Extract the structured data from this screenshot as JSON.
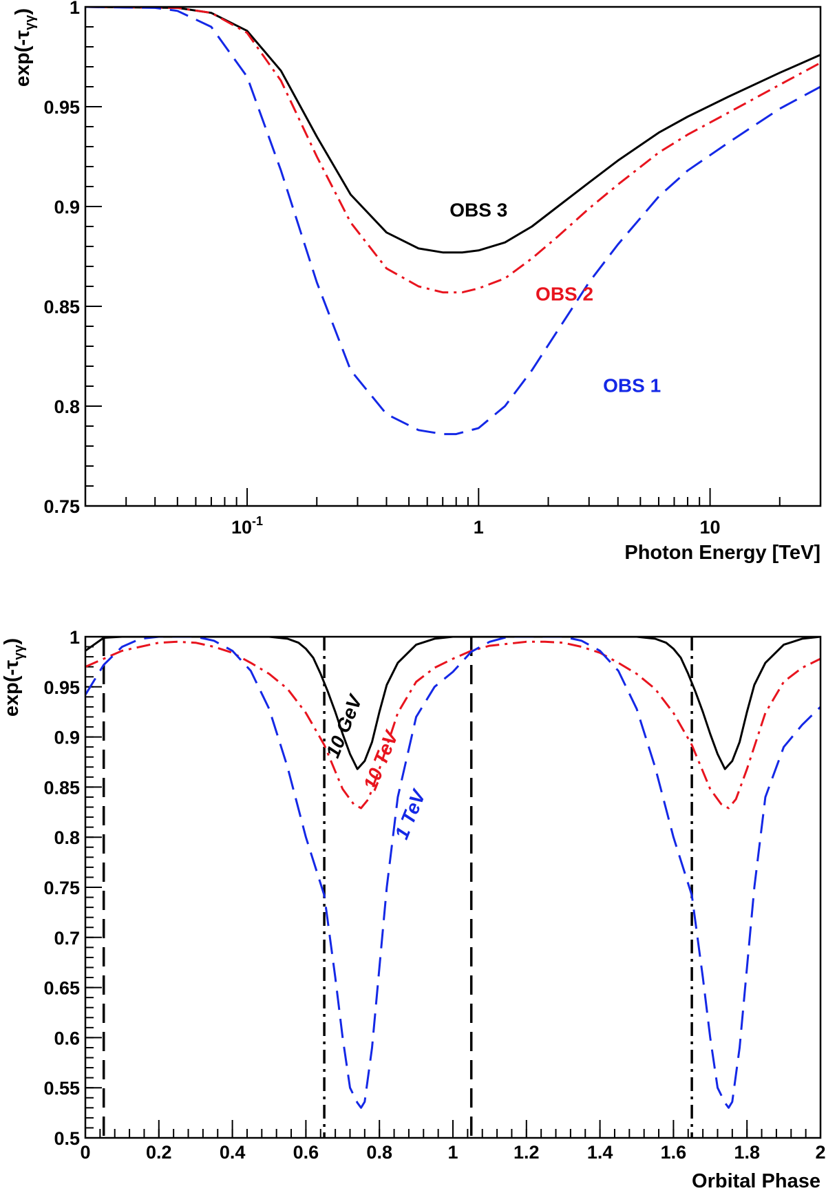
{
  "chart_data": [
    {
      "type": "line",
      "xscale": "log",
      "xlim": [
        0.02,
        30
      ],
      "ylim": [
        0.75,
        1
      ],
      "xlabel": "Photon Energy [TeV]",
      "ylabel_main": "exp(-τ",
      "ylabel_sub": "γγ",
      "ylabel_close": ")",
      "xticks": [
        {
          "value": 0.1,
          "label": "10",
          "sup": "-1"
        },
        {
          "value": 1,
          "label": "1",
          "sup": ""
        },
        {
          "value": 10,
          "label": "10",
          "sup": ""
        }
      ],
      "yticks": [
        {
          "value": 0.75,
          "label": "0.75"
        },
        {
          "value": 0.8,
          "label": "0.8"
        },
        {
          "value": 0.85,
          "label": "0.85"
        },
        {
          "value": 0.9,
          "label": "0.9"
        },
        {
          "value": 0.95,
          "label": "0.95"
        },
        {
          "value": 1,
          "label": "1"
        }
      ],
      "series": [
        {
          "name": "OBS 3",
          "color": "#000000",
          "dash": "solid",
          "x": [
            0.02,
            0.05,
            0.07,
            0.1,
            0.14,
            0.2,
            0.28,
            0.4,
            0.55,
            0.7,
            0.85,
            1.0,
            1.3,
            1.7,
            2.2,
            3,
            4,
            6,
            8,
            12,
            20,
            30
          ],
          "y": [
            1.0,
            0.9995,
            0.997,
            0.988,
            0.968,
            0.935,
            0.906,
            0.887,
            0.879,
            0.877,
            0.877,
            0.878,
            0.882,
            0.89,
            0.9,
            0.912,
            0.923,
            0.937,
            0.945,
            0.955,
            0.967,
            0.976
          ]
        },
        {
          "name": "OBS 2",
          "color": "#e8141e",
          "dash": "dashdot",
          "x": [
            0.02,
            0.05,
            0.07,
            0.1,
            0.14,
            0.2,
            0.28,
            0.4,
            0.55,
            0.7,
            0.85,
            1.0,
            1.3,
            1.7,
            2.2,
            3,
            4,
            6,
            8,
            12,
            20,
            30
          ],
          "y": [
            1.0,
            0.9995,
            0.997,
            0.987,
            0.963,
            0.925,
            0.892,
            0.869,
            0.86,
            0.857,
            0.857,
            0.859,
            0.864,
            0.874,
            0.885,
            0.899,
            0.911,
            0.927,
            0.936,
            0.947,
            0.961,
            0.972
          ]
        },
        {
          "name": "OBS 1",
          "color": "#1428e6",
          "dash": "dashed",
          "x": [
            0.02,
            0.04,
            0.05,
            0.07,
            0.1,
            0.14,
            0.2,
            0.28,
            0.4,
            0.55,
            0.7,
            0.8,
            1.0,
            1.3,
            1.7,
            2.2,
            3,
            4,
            6,
            8,
            12,
            20,
            30
          ],
          "y": [
            1.0,
            0.9995,
            0.998,
            0.99,
            0.965,
            0.918,
            0.862,
            0.818,
            0.796,
            0.788,
            0.786,
            0.786,
            0.789,
            0.8,
            0.818,
            0.838,
            0.862,
            0.881,
            0.905,
            0.918,
            0.932,
            0.949,
            0.96
          ]
        }
      ],
      "annotations": [
        {
          "text": "OBS 3",
          "color": "#000000",
          "x": 1.0,
          "y": 0.895
        },
        {
          "text": "OBS 2",
          "color": "#e8141e",
          "x": 2.35,
          "y": 0.853
        },
        {
          "text": "OBS 1",
          "color": "#1428e6",
          "x": 4.6,
          "y": 0.807
        }
      ]
    },
    {
      "type": "line",
      "xlim": [
        0,
        2
      ],
      "ylim": [
        0.5,
        1
      ],
      "xlabel": "Orbital Phase",
      "ylabel_main": "exp(-τ",
      "ylabel_sub": "γγ",
      "ylabel_close": ")",
      "xticks": [
        {
          "value": 0,
          "label": "0"
        },
        {
          "value": 0.2,
          "label": "0.2"
        },
        {
          "value": 0.4,
          "label": "0.4"
        },
        {
          "value": 0.6,
          "label": "0.6"
        },
        {
          "value": 0.8,
          "label": "0.8"
        },
        {
          "value": 1,
          "label": "1"
        },
        {
          "value": 1.2,
          "label": "1.2"
        },
        {
          "value": 1.4,
          "label": "1.4"
        },
        {
          "value": 1.6,
          "label": "1.6"
        },
        {
          "value": 1.8,
          "label": "1.8"
        },
        {
          "value": 2,
          "label": "2"
        }
      ],
      "yticks": [
        {
          "value": 0.5,
          "label": "0.5"
        },
        {
          "value": 0.55,
          "label": "0.55"
        },
        {
          "value": 0.6,
          "label": "0.6"
        },
        {
          "value": 0.65,
          "label": "0.65"
        },
        {
          "value": 0.7,
          "label": "0.7"
        },
        {
          "value": 0.75,
          "label": "0.75"
        },
        {
          "value": 0.8,
          "label": "0.8"
        },
        {
          "value": 0.85,
          "label": "0.85"
        },
        {
          "value": 0.9,
          "label": "0.9"
        },
        {
          "value": 0.95,
          "label": "0.95"
        },
        {
          "value": 1,
          "label": "1"
        }
      ],
      "vlines": [
        {
          "x": 0.05,
          "dash": "dashed"
        },
        {
          "x": 0.65,
          "dash": "dashdot"
        },
        {
          "x": 1.05,
          "dash": "dashed"
        },
        {
          "x": 1.65,
          "dash": "dashdot"
        }
      ],
      "series": [
        {
          "name": "10 GeV",
          "color": "#000000",
          "dash": "solid",
          "x": [
            0,
            0.05,
            0.1,
            0.2,
            0.3,
            0.4,
            0.5,
            0.55,
            0.58,
            0.6,
            0.62,
            0.64,
            0.66,
            0.68,
            0.7,
            0.72,
            0.74,
            0.76,
            0.78,
            0.8,
            0.82,
            0.85,
            0.9,
            0.95,
            1.0,
            1.05,
            1.1,
            1.2,
            1.3,
            1.4,
            1.5,
            1.55,
            1.58,
            1.6,
            1.62,
            1.64,
            1.66,
            1.68,
            1.7,
            1.72,
            1.74,
            1.76,
            1.78,
            1.8,
            1.82,
            1.85,
            1.9,
            1.95,
            2.0
          ],
          "y": [
            0.986,
            0.999,
            1.0,
            1.0,
            1.0,
            1.0,
            1.0,
            0.998,
            0.994,
            0.988,
            0.979,
            0.963,
            0.945,
            0.925,
            0.903,
            0.883,
            0.868,
            0.876,
            0.895,
            0.925,
            0.952,
            0.974,
            0.992,
            0.998,
            1.0,
            1.0,
            1.0,
            1.0,
            1.0,
            1.0,
            1.0,
            0.998,
            0.994,
            0.988,
            0.979,
            0.963,
            0.945,
            0.925,
            0.903,
            0.883,
            0.868,
            0.876,
            0.895,
            0.925,
            0.952,
            0.974,
            0.992,
            0.998,
            1.0
          ]
        },
        {
          "name": "10 TeV",
          "color": "#e8141e",
          "dash": "dashdot",
          "x": [
            0,
            0.05,
            0.1,
            0.2,
            0.25,
            0.3,
            0.35,
            0.4,
            0.45,
            0.5,
            0.55,
            0.6,
            0.65,
            0.7,
            0.73,
            0.75,
            0.77,
            0.8,
            0.85,
            0.9,
            0.95,
            1.0,
            1.05,
            1.1,
            1.2,
            1.25,
            1.3,
            1.35,
            1.4,
            1.45,
            1.5,
            1.55,
            1.6,
            1.65,
            1.7,
            1.73,
            1.75,
            1.77,
            1.8,
            1.85,
            1.9,
            1.95,
            2.0
          ],
          "y": [
            0.97,
            0.978,
            0.986,
            0.994,
            0.995,
            0.994,
            0.99,
            0.984,
            0.974,
            0.963,
            0.948,
            0.924,
            0.892,
            0.848,
            0.833,
            0.829,
            0.838,
            0.868,
            0.924,
            0.955,
            0.969,
            0.978,
            0.986,
            0.991,
            0.995,
            0.995,
            0.994,
            0.99,
            0.984,
            0.974,
            0.963,
            0.948,
            0.924,
            0.892,
            0.848,
            0.833,
            0.829,
            0.838,
            0.868,
            0.924,
            0.955,
            0.969,
            0.978
          ]
        },
        {
          "name": "1 TeV",
          "color": "#1428e6",
          "dash": "dashed",
          "x": [
            0,
            0.05,
            0.1,
            0.15,
            0.2,
            0.25,
            0.3,
            0.35,
            0.4,
            0.45,
            0.5,
            0.55,
            0.6,
            0.65,
            0.68,
            0.7,
            0.72,
            0.74,
            0.75,
            0.76,
            0.78,
            0.8,
            0.82,
            0.85,
            0.9,
            0.95,
            1.0,
            1.05,
            1.1,
            1.15,
            1.2,
            1.25,
            1.3,
            1.35,
            1.4,
            1.45,
            1.5,
            1.55,
            1.6,
            1.65,
            1.68,
            1.7,
            1.72,
            1.74,
            1.75,
            1.76,
            1.78,
            1.8,
            1.82,
            1.85,
            1.9,
            1.95,
            2.0
          ],
          "y": [
            0.942,
            0.972,
            0.99,
            0.998,
            1.0,
            1.0,
            1.0,
            0.996,
            0.986,
            0.966,
            0.928,
            0.87,
            0.8,
            0.742,
            0.66,
            0.6,
            0.55,
            0.535,
            0.53,
            0.536,
            0.59,
            0.67,
            0.75,
            0.84,
            0.92,
            0.95,
            0.965,
            0.985,
            0.995,
            1.0,
            1.0,
            1.0,
            1.0,
            0.996,
            0.986,
            0.966,
            0.928,
            0.87,
            0.8,
            0.742,
            0.66,
            0.6,
            0.55,
            0.535,
            0.53,
            0.536,
            0.59,
            0.67,
            0.75,
            0.84,
            0.89,
            0.912,
            0.93
          ]
        }
      ],
      "annotations": [
        {
          "text": "10 GeV",
          "color": "#000000",
          "x": 0.72,
          "y": 0.908
        },
        {
          "text": "10 TeV",
          "color": "#e8141e",
          "x": 0.82,
          "y": 0.874
        },
        {
          "text": "1 TeV",
          "color": "#1428e6",
          "x": 0.9,
          "y": 0.82
        }
      ]
    }
  ]
}
